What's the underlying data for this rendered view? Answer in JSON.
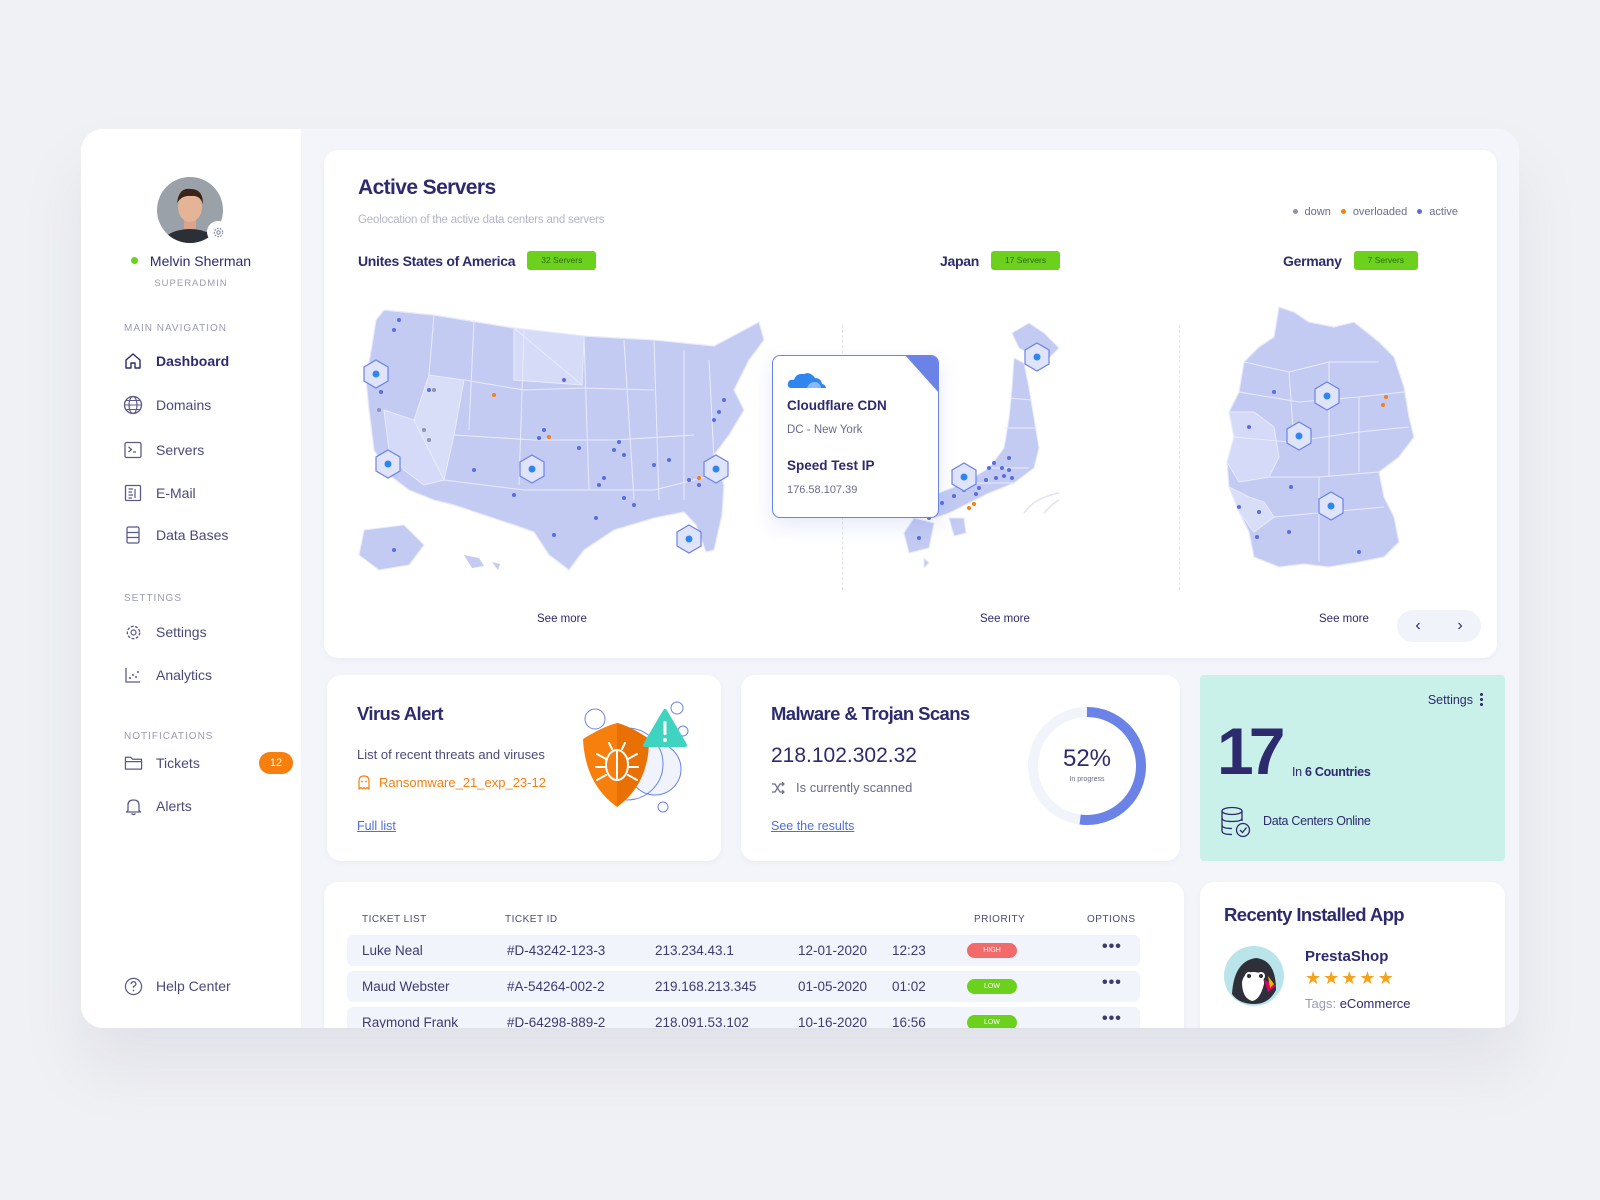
{
  "user": {
    "name": "Melvin Sherman",
    "role": "SUPERADMIN"
  },
  "nav": {
    "main_label": "MAIN NAVIGATION",
    "main_items": [
      {
        "label": "Dashboard",
        "icon": "home-icon"
      },
      {
        "label": "Domains",
        "icon": "globe-icon"
      },
      {
        "label": "Servers",
        "icon": "terminal-icon"
      },
      {
        "label": "E-Mail",
        "icon": "mail-icon"
      },
      {
        "label": "Data Bases",
        "icon": "database-icon"
      }
    ],
    "settings_label": "SETTINGS",
    "settings_items": [
      {
        "label": "Settings",
        "icon": "gear-icon"
      },
      {
        "label": "Analytics",
        "icon": "chart-icon"
      }
    ],
    "notifications_label": "NOTIFICATIONS",
    "notification_items": [
      {
        "label": "Tickets",
        "icon": "folder-icon",
        "badge": "12"
      },
      {
        "label": "Alerts",
        "icon": "bell-icon"
      }
    ],
    "help": "Help Center"
  },
  "servers": {
    "title": "Active Servers",
    "subtitle": "Geolocation of the active data centers and servers",
    "legend": [
      {
        "label": "down",
        "color": "#8e93b3"
      },
      {
        "label": "overloaded",
        "color": "#f77f0e"
      },
      {
        "label": "active",
        "color": "#5a6de0"
      }
    ],
    "countries": [
      {
        "name": "Unites States of America",
        "count": "32 Servers",
        "see_more": "See more"
      },
      {
        "name": "Japan",
        "count": "17 Servers",
        "see_more": "See more"
      },
      {
        "name": "Germany",
        "count": "7 Servers",
        "see_more": "See more"
      }
    ],
    "tooltip": {
      "title": "Cloudflare CDN",
      "location": "DC - New York",
      "label": "Speed Test IP",
      "ip": "176.58.107.39"
    }
  },
  "virus": {
    "title": "Virus Alert",
    "desc": "List of recent threats and viruses",
    "threat": "Ransomware_21_exp_23-12",
    "link": "Full list"
  },
  "malware": {
    "title": "Malware & Trojan Scans",
    "ip": "218.102.302.32",
    "status": "Is currently scanned",
    "link": "See the results",
    "percent": "52%",
    "progress": 0.52,
    "progress_label": "In progress"
  },
  "datacenters": {
    "settings": "Settings",
    "count": "17",
    "countries_prefix": "In",
    "countries_value": "6 Countries",
    "label": "Data Centers Online"
  },
  "tickets": {
    "headers": [
      "TICKET LIST",
      "TICKET ID",
      "PRIORITY",
      "OPTIONS"
    ],
    "rows": [
      {
        "name": "Luke Neal",
        "id": "#D-43242-123-3",
        "ip": "213.234.43.1",
        "date": "12-01-2020",
        "time": "12:23",
        "priority": "HIGH",
        "options": "•••"
      },
      {
        "name": "Maud Webster",
        "id": "#A-54264-002-2",
        "ip": "219.168.213.345",
        "date": "01-05-2020",
        "time": "01:02",
        "priority": "LOW",
        "options": "•••"
      },
      {
        "name": "Raymond Frank",
        "id": "#D-64298-889-2",
        "ip": "218.091.53.102",
        "date": "10-16-2020",
        "time": "16:56",
        "priority": "LOW",
        "options": "•••"
      }
    ]
  },
  "app": {
    "title": "Recenty Installed App",
    "name": "PrestaShop",
    "rating": 5,
    "tags_label": "Tags:",
    "tags": "eCommerce"
  }
}
